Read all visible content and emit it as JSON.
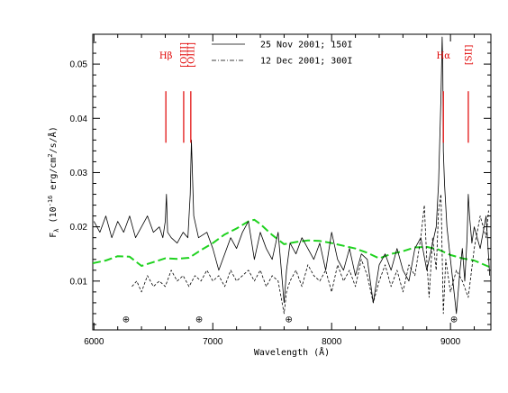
{
  "chart_data": {
    "type": "line",
    "title": "",
    "xlabel": "Wavelength (Å)",
    "ylabel": "F_λ (10^-16 erg/cm^2/s/Å)",
    "xlim": [
      5990,
      9340
    ],
    "ylim": [
      0.001,
      0.0555
    ],
    "x_ticks": [
      6000,
      7000,
      8000,
      9000
    ],
    "y_ticks": [
      0.01,
      0.02,
      0.03,
      0.04,
      0.05
    ],
    "y_tick_labels": [
      "0.01",
      "0.02",
      "0.03",
      "0.04",
      "0.05"
    ],
    "legend_position": "top-center",
    "series": [
      {
        "name": "25 Nov 2001; 150I",
        "style": "solid",
        "color": "#000000",
        "x": [
          6000,
          6050,
          6100,
          6150,
          6200,
          6250,
          6300,
          6350,
          6400,
          6450,
          6500,
          6550,
          6580,
          6600,
          6610,
          6620,
          6650,
          6700,
          6750,
          6790,
          6810,
          6820,
          6840,
          6880,
          6950,
          7000,
          7050,
          7100,
          7150,
          7200,
          7250,
          7300,
          7350,
          7400,
          7450,
          7500,
          7550,
          7600,
          7620,
          7650,
          7700,
          7750,
          7800,
          7850,
          7900,
          7950,
          8000,
          8050,
          8100,
          8150,
          8200,
          8250,
          8300,
          8350,
          8400,
          8450,
          8500,
          8550,
          8600,
          8650,
          8700,
          8750,
          8800,
          8850,
          8880,
          8900,
          8920,
          8930,
          8935,
          8940,
          8950,
          8970,
          9000,
          9030,
          9050,
          9080,
          9100,
          9120,
          9140,
          9150,
          9160,
          9180,
          9200,
          9250,
          9300,
          9330
        ],
        "y": [
          0.021,
          0.019,
          0.022,
          0.018,
          0.021,
          0.019,
          0.022,
          0.018,
          0.02,
          0.022,
          0.019,
          0.02,
          0.018,
          0.021,
          0.026,
          0.019,
          0.018,
          0.017,
          0.019,
          0.018,
          0.026,
          0.036,
          0.022,
          0.018,
          0.019,
          0.016,
          0.012,
          0.015,
          0.018,
          0.016,
          0.019,
          0.021,
          0.014,
          0.019,
          0.016,
          0.014,
          0.019,
          0.006,
          0.012,
          0.017,
          0.015,
          0.018,
          0.016,
          0.014,
          0.017,
          0.012,
          0.019,
          0.014,
          0.012,
          0.016,
          0.011,
          0.015,
          0.014,
          0.006,
          0.013,
          0.015,
          0.012,
          0.016,
          0.012,
          0.01,
          0.016,
          0.018,
          0.012,
          0.017,
          0.02,
          0.028,
          0.044,
          0.055,
          0.05,
          0.034,
          0.028,
          0.02,
          0.014,
          0.008,
          0.004,
          0.012,
          0.016,
          0.01,
          0.018,
          0.026,
          0.022,
          0.017,
          0.02,
          0.016,
          0.022,
          0.011
        ]
      },
      {
        "name": "12 Dec 2001; 300I",
        "style": "dashed",
        "color": "#000000",
        "x": [
          6320,
          6360,
          6400,
          6450,
          6500,
          6550,
          6600,
          6650,
          6700,
          6750,
          6800,
          6850,
          6900,
          6950,
          7000,
          7050,
          7100,
          7150,
          7200,
          7250,
          7300,
          7350,
          7400,
          7450,
          7500,
          7550,
          7600,
          7620,
          7650,
          7700,
          7750,
          7800,
          7850,
          7900,
          7950,
          8000,
          8050,
          8100,
          8150,
          8200,
          8250,
          8300,
          8350,
          8400,
          8450,
          8500,
          8550,
          8600,
          8650,
          8700,
          8750,
          8780,
          8800,
          8820,
          8850,
          8880,
          8900,
          8920,
          8940,
          8960,
          9000,
          9050,
          9100,
          9150,
          9200,
          9250,
          9300,
          9320
        ],
        "y": [
          0.009,
          0.01,
          0.008,
          0.011,
          0.009,
          0.01,
          0.009,
          0.012,
          0.01,
          0.011,
          0.009,
          0.011,
          0.01,
          0.012,
          0.01,
          0.011,
          0.009,
          0.012,
          0.01,
          0.011,
          0.012,
          0.01,
          0.012,
          0.009,
          0.011,
          0.01,
          0.004,
          0.008,
          0.01,
          0.012,
          0.009,
          0.013,
          0.011,
          0.01,
          0.012,
          0.008,
          0.013,
          0.01,
          0.012,
          0.009,
          0.014,
          0.011,
          0.006,
          0.01,
          0.013,
          0.009,
          0.012,
          0.008,
          0.013,
          0.011,
          0.018,
          0.024,
          0.014,
          0.007,
          0.018,
          0.012,
          0.023,
          0.026,
          0.004,
          0.014,
          0.008,
          0.012,
          0.01,
          0.007,
          0.016,
          0.022,
          0.018,
          0.023
        ]
      },
      {
        "name": "",
        "style": "dashed-thick",
        "color": "#1fd21f",
        "x": [
          5990,
          6100,
          6200,
          6300,
          6400,
          6500,
          6600,
          6700,
          6800,
          6900,
          7000,
          7100,
          7200,
          7300,
          7350,
          7400,
          7500,
          7600,
          7700,
          7800,
          7900,
          8000,
          8100,
          8200,
          8300,
          8400,
          8500,
          8600,
          8700,
          8800,
          8900,
          9000,
          9100,
          9200,
          9340
        ],
        "y": [
          0.0133,
          0.0138,
          0.0146,
          0.0145,
          0.0128,
          0.0135,
          0.0142,
          0.0141,
          0.0143,
          0.0157,
          0.017,
          0.0186,
          0.0197,
          0.021,
          0.0213,
          0.0205,
          0.0185,
          0.0168,
          0.0172,
          0.0175,
          0.0174,
          0.017,
          0.0165,
          0.016,
          0.0152,
          0.0142,
          0.015,
          0.0155,
          0.0162,
          0.0163,
          0.0158,
          0.0148,
          0.0142,
          0.0138,
          0.0125
        ]
      }
    ],
    "line_markers": [
      {
        "label": "Hβ",
        "x": 6605,
        "y0": 0.0355,
        "y1": 0.045,
        "label_y": 0.0517
      },
      {
        "label": "[OIII]",
        "x": 6755,
        "y0": 0.0355,
        "y1": 0.045,
        "label_y": 0.0517
      },
      {
        "label": "[OIII]",
        "x": 6815,
        "y0": 0.0355,
        "y1": 0.045,
        "label_y": 0.0517
      },
      {
        "label": "Hα",
        "x": 8940,
        "y0": 0.0355,
        "y1": 0.045,
        "label_y": 0.0517
      },
      {
        "label": "[SII]",
        "x": 9150,
        "y0": 0.0355,
        "y1": 0.045,
        "label_y": 0.0517
      }
    ],
    "telluric_markers": [
      {
        "symbol": "⊕",
        "x": 6270,
        "y": 0.0031
      },
      {
        "symbol": "⊕",
        "x": 6885,
        "y": 0.0031
      },
      {
        "symbol": "⊕",
        "x": 7640,
        "y": 0.0031
      },
      {
        "symbol": "⊕",
        "x": 9030,
        "y": 0.0031
      }
    ],
    "marker_color": "#e00000"
  }
}
